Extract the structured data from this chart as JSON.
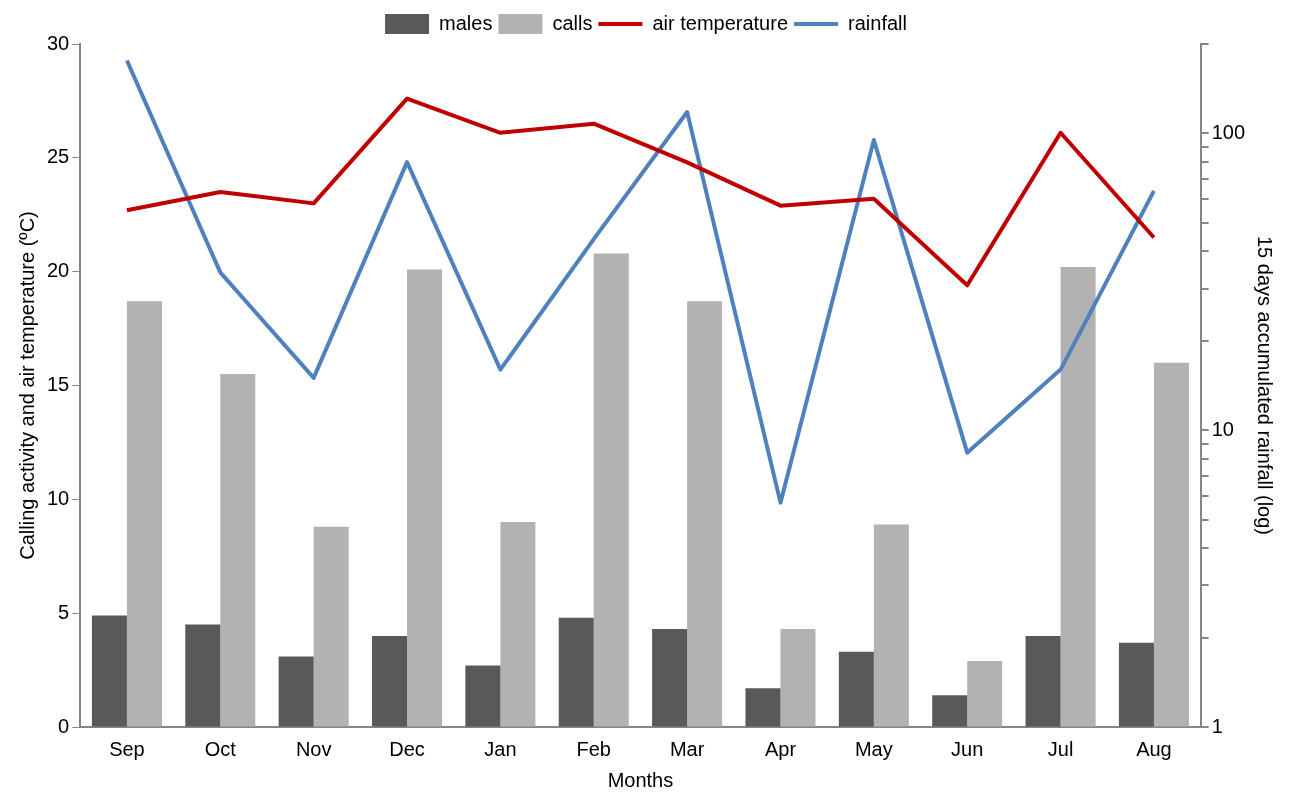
{
  "chart_data": {
    "type": "bar",
    "xlabel": "Months",
    "ylabel": "Calling activity and air temperature (ºC)",
    "y2label": "15 days accumulated rainfall (log)",
    "categories": [
      "Sep",
      "Oct",
      "Nov",
      "Dec",
      "Jan",
      "Feb",
      "Mar",
      "Apr",
      "May",
      "Jun",
      "Jul",
      "Aug"
    ],
    "series": [
      {
        "name": "males",
        "color": "#595959",
        "values": [
          4.9,
          4.5,
          3.1,
          4.0,
          2.7,
          4.8,
          4.3,
          1.7,
          3.3,
          1.4,
          4.0,
          3.7
        ]
      },
      {
        "name": "calls",
        "color": "#b2b2b2",
        "values": [
          18.7,
          15.5,
          8.8,
          20.1,
          9.0,
          20.8,
          18.7,
          4.3,
          8.9,
          2.9,
          20.2,
          16.0
        ]
      },
      {
        "name": "air temperature",
        "type": "line",
        "color": "#c00000",
        "values": [
          22.7,
          23.5,
          23.0,
          27.6,
          26.1,
          26.5,
          24.8,
          22.9,
          23.2,
          19.4,
          26.1,
          21.5
        ]
      },
      {
        "name": "rainfall",
        "type": "line",
        "axis": "y2",
        "color": "#4f81bd",
        "values": [
          176,
          34,
          15,
          80,
          16,
          44,
          118,
          5.7,
          95,
          8.4,
          16,
          64
        ]
      }
    ],
    "ylim": [
      0,
      30
    ],
    "yticks": [
      0,
      5,
      10,
      15,
      20,
      25,
      30
    ],
    "y2lim": [
      1,
      200
    ],
    "y2ticks": [
      1,
      {
        "value": 2,
        "label": null
      },
      {
        "value": 3,
        "label": null
      },
      {
        "value": 4,
        "label": null
      },
      {
        "value": 5,
        "label": null
      },
      {
        "value": 6,
        "label": null
      },
      {
        "value": 7,
        "label": null
      },
      {
        "value": 8,
        "label": null
      },
      {
        "value": 9,
        "label": null
      },
      10,
      {
        "value": 20,
        "label": null
      },
      {
        "value": 30,
        "label": null
      },
      {
        "value": 40,
        "label": null
      },
      {
        "value": 50,
        "label": null
      },
      {
        "value": 60,
        "label": null
      },
      {
        "value": 70,
        "label": null
      },
      {
        "value": 80,
        "label": null
      },
      {
        "value": 90,
        "label": null
      },
      100,
      {
        "value": 200,
        "label": null
      }
    ],
    "log": "y2",
    "grid": false,
    "legend": "top",
    "marker": "none"
  }
}
